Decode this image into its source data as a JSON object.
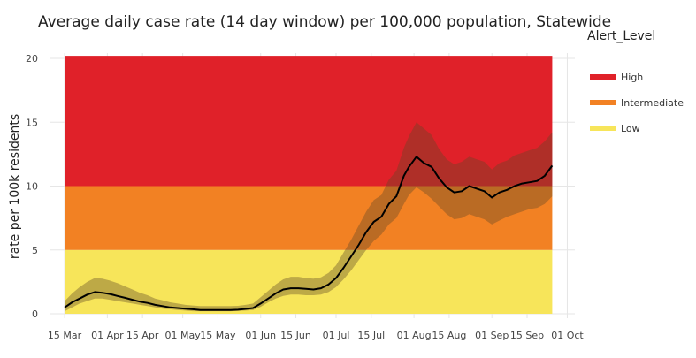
{
  "chart_data": {
    "type": "line",
    "title": "Average daily case rate (14 day window) per 100,000 population, Statewide",
    "xlabel": "",
    "ylabel": "rate per 100k residents",
    "ylim": [
      0,
      20
    ],
    "y_ticks": [
      0,
      5,
      10,
      15,
      20
    ],
    "x_ticks": [
      {
        "label": "15 Mar",
        "day": 0
      },
      {
        "label": "01 Apr",
        "day": 17
      },
      {
        "label": "15 Apr",
        "day": 31
      },
      {
        "label": "01 May",
        "day": 47
      },
      {
        "label": "15 May",
        "day": 61
      },
      {
        "label": "01 Jun",
        "day": 78
      },
      {
        "label": "15 Jun",
        "day": 92
      },
      {
        "label": "01 Jul",
        "day": 108
      },
      {
        "label": "15 Jul",
        "day": 122
      },
      {
        "label": "01 Aug",
        "day": 139
      },
      {
        "label": "15 Aug",
        "day": 153
      },
      {
        "label": "01 Sep",
        "day": 170
      },
      {
        "label": "15 Sep",
        "day": 184
      },
      {
        "label": "01 Oct",
        "day": 200
      }
    ],
    "x_range_days": [
      -6,
      203
    ],
    "alert_bands": [
      {
        "name": "Low",
        "from": 0,
        "to": 5,
        "color": "#F7E55A"
      },
      {
        "name": "Intermediate",
        "from": 5,
        "to": 10,
        "color": "#F28123"
      },
      {
        "name": "High",
        "from": 10,
        "to": 20.2,
        "color": "#E02129"
      }
    ],
    "bands_x_range_days": [
      0,
      194
    ],
    "legend": {
      "title": "Alert_Level",
      "items": [
        {
          "label": "High",
          "color": "#E02129"
        },
        {
          "label": "Intermediate",
          "color": "#F28123"
        },
        {
          "label": "Low",
          "color": "#F7E55A"
        }
      ]
    },
    "series": [
      {
        "name": "Statewide case rate",
        "color": "#000000",
        "x_days": [
          0,
          3,
          6,
          9,
          12,
          15,
          18,
          21,
          24,
          27,
          30,
          33,
          36,
          39,
          42,
          45,
          48,
          51,
          54,
          57,
          60,
          63,
          66,
          69,
          72,
          75,
          78,
          81,
          84,
          87,
          90,
          93,
          96,
          99,
          102,
          105,
          108,
          111,
          114,
          117,
          120,
          123,
          126,
          129,
          132,
          135,
          137,
          140,
          143,
          146,
          149,
          152,
          155,
          158,
          161,
          164,
          167,
          170,
          173,
          176,
          179,
          182,
          185,
          188,
          191,
          194
        ],
        "values": [
          0.5,
          0.9,
          1.2,
          1.5,
          1.7,
          1.65,
          1.55,
          1.4,
          1.25,
          1.1,
          0.95,
          0.85,
          0.7,
          0.6,
          0.5,
          0.45,
          0.4,
          0.35,
          0.3,
          0.3,
          0.3,
          0.3,
          0.3,
          0.32,
          0.38,
          0.45,
          0.8,
          1.2,
          1.6,
          1.9,
          2.0,
          2.0,
          1.95,
          1.9,
          2.0,
          2.3,
          2.8,
          3.6,
          4.5,
          5.4,
          6.4,
          7.2,
          7.6,
          8.6,
          9.2,
          10.8,
          11.5,
          12.3,
          11.8,
          11.5,
          10.6,
          9.9,
          9.5,
          9.6,
          10.0,
          9.8,
          9.6,
          9.1,
          9.5,
          9.7,
          10.0,
          10.2,
          10.3,
          10.4,
          10.8,
          11.6
        ],
        "band_lower": [
          0.2,
          0.5,
          0.8,
          1.0,
          1.2,
          1.2,
          1.1,
          1.0,
          0.9,
          0.8,
          0.7,
          0.6,
          0.5,
          0.4,
          0.35,
          0.3,
          0.25,
          0.2,
          0.2,
          0.2,
          0.2,
          0.2,
          0.2,
          0.22,
          0.25,
          0.3,
          0.55,
          0.9,
          1.2,
          1.4,
          1.5,
          1.5,
          1.45,
          1.45,
          1.5,
          1.7,
          2.1,
          2.7,
          3.4,
          4.2,
          5.0,
          5.7,
          6.2,
          7.0,
          7.5,
          8.6,
          9.3,
          9.9,
          9.5,
          9.0,
          8.4,
          7.8,
          7.4,
          7.5,
          7.8,
          7.6,
          7.4,
          7.0,
          7.3,
          7.6,
          7.8,
          8.0,
          8.2,
          8.3,
          8.6,
          9.2
        ],
        "band_upper": [
          1.0,
          1.6,
          2.1,
          2.5,
          2.8,
          2.75,
          2.6,
          2.4,
          2.15,
          1.9,
          1.65,
          1.45,
          1.2,
          1.05,
          0.9,
          0.8,
          0.7,
          0.65,
          0.6,
          0.6,
          0.6,
          0.6,
          0.6,
          0.62,
          0.7,
          0.8,
          1.3,
          1.8,
          2.3,
          2.7,
          2.9,
          2.9,
          2.8,
          2.75,
          2.85,
          3.2,
          3.8,
          4.8,
          5.8,
          6.9,
          8.0,
          8.9,
          9.3,
          10.5,
          11.2,
          13.0,
          13.9,
          15.0,
          14.5,
          14.0,
          12.9,
          12.1,
          11.7,
          11.9,
          12.3,
          12.1,
          11.9,
          11.3,
          11.8,
          12.0,
          12.4,
          12.6,
          12.8,
          13.0,
          13.5,
          14.2
        ]
      }
    ]
  }
}
